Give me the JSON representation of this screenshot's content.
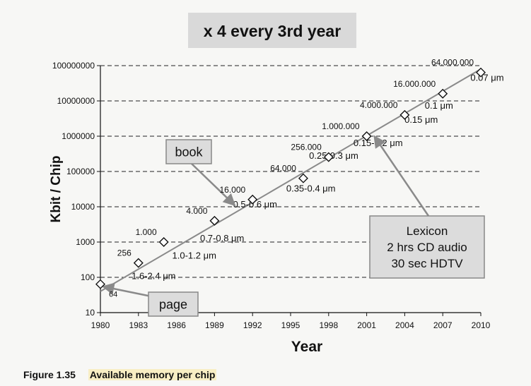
{
  "chart_data": {
    "type": "scatter",
    "title": "x 4 every 3rd year",
    "xlabel": "Year",
    "ylabel": "Kbit / Chip",
    "yscale": "log",
    "ylim": [
      10,
      100000000
    ],
    "xlim": [
      1980,
      2010
    ],
    "grid": "horizontal dashed",
    "x_ticks": [
      "1980",
      "1983",
      "1986",
      "1989",
      "1992",
      "1995",
      "1998",
      "2001",
      "2004",
      "2007",
      "2010"
    ],
    "y_ticks": [
      "10",
      "100",
      "1000",
      "10000",
      "100000",
      "1000000",
      "10000000",
      "100000000"
    ],
    "points": [
      {
        "x": 1980,
        "y": 64,
        "label": "64"
      },
      {
        "x": 1983,
        "y": 256,
        "label": "256"
      },
      {
        "x": 1985,
        "y": 1000,
        "label": "1.000"
      },
      {
        "x": 1989,
        "y": 4000,
        "label": "4.000"
      },
      {
        "x": 1992,
        "y": 16000,
        "label": "16.000"
      },
      {
        "x": 1996,
        "y": 64000,
        "label": "64.000"
      },
      {
        "x": 1998,
        "y": 256000,
        "label": "256.000"
      },
      {
        "x": 2001,
        "y": 1000000,
        "label": "1.000.000"
      },
      {
        "x": 2004,
        "y": 4000000,
        "label": "4.000.000"
      },
      {
        "x": 2007,
        "y": 16000000,
        "label": "16.000.000"
      },
      {
        "x": 2010,
        "y": 64000000,
        "label": "64.000.000"
      }
    ],
    "trendline": {
      "x": [
        1980,
        2010
      ],
      "y": [
        40,
        80000000
      ]
    },
    "feature_sizes": [
      {
        "x": 1984.2,
        "y": 90,
        "label": "1.6-2.4 μm"
      },
      {
        "x": 1987.4,
        "y": 340,
        "label": "1.0-1.2 μm"
      },
      {
        "x": 1989.6,
        "y": 1050,
        "label": "0.7-0.8 μm"
      },
      {
        "x": 1992.2,
        "y": 9500,
        "label": "0.5-0.6 μm"
      },
      {
        "x": 1996.6,
        "y": 27000,
        "label": "0.35-0.4 μm"
      },
      {
        "x": 1998.4,
        "y": 230000,
        "label": "0.25-0.3 μm"
      },
      {
        "x": 2001.9,
        "y": 520000,
        "label": "0.15-0.2 μm"
      },
      {
        "x": 2005.3,
        "y": 2400000,
        "label": "0.15 μm"
      },
      {
        "x": 2006.7,
        "y": 6000000,
        "label": "0.1 μm"
      },
      {
        "x": 2010.5,
        "y": 37000000,
        "label": "0.07 μm"
      }
    ],
    "callouts": [
      {
        "lines": [
          "book"
        ],
        "target_x": 1990.6,
        "target_y": 11000
      },
      {
        "lines": [
          "page"
        ],
        "target_x": 1980.2,
        "target_y": 55
      },
      {
        "lines": [
          "Lexicon",
          "2 hrs CD audio",
          "30 sec HDTV"
        ],
        "target_x": 2001.6,
        "target_y": 1000000
      }
    ],
    "colors": {
      "marker_fill": "#ffffff",
      "marker_stroke": "#111111",
      "trend": "#8a8a8a",
      "callout_bg": "#dcdcdc",
      "callout_border": "#888888",
      "arrow": "#8a8a8a"
    }
  },
  "caption": {
    "number": "Figure 1.35",
    "text": "Available memory per chip"
  }
}
